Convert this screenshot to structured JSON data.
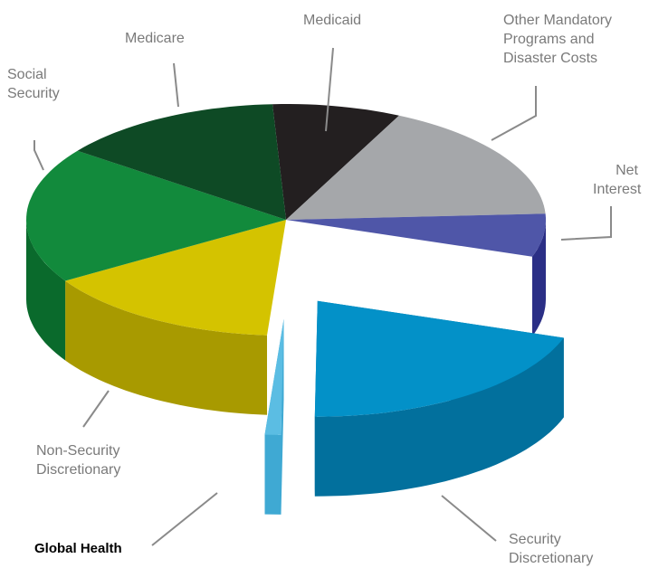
{
  "chart_data": {
    "type": "pie",
    "categories": [
      "Medicaid",
      "Other Mandatory Programs and Disaster Costs",
      "Net Interest",
      "Security Discretionary",
      "Global Health",
      "Non-Security Discretionary",
      "Social Security",
      "Medicare"
    ],
    "values": [
      8,
      17,
      6,
      20,
      1,
      15,
      19,
      14
    ],
    "colors": [
      "#231f20",
      "#a5a7aa",
      "#4f56a8",
      "#0391c8",
      "#5bbde3",
      "#d4c300",
      "#128a3c",
      "#0e4a25"
    ],
    "side_colors": [
      "#151314",
      "#7d7f82",
      "#2b2f86",
      "#02709d",
      "#3fa9d3",
      "#a89a00",
      "#0a6a2c",
      "#083218"
    ],
    "explode": [
      false,
      false,
      false,
      true,
      true,
      false,
      false,
      false
    ]
  }
}
